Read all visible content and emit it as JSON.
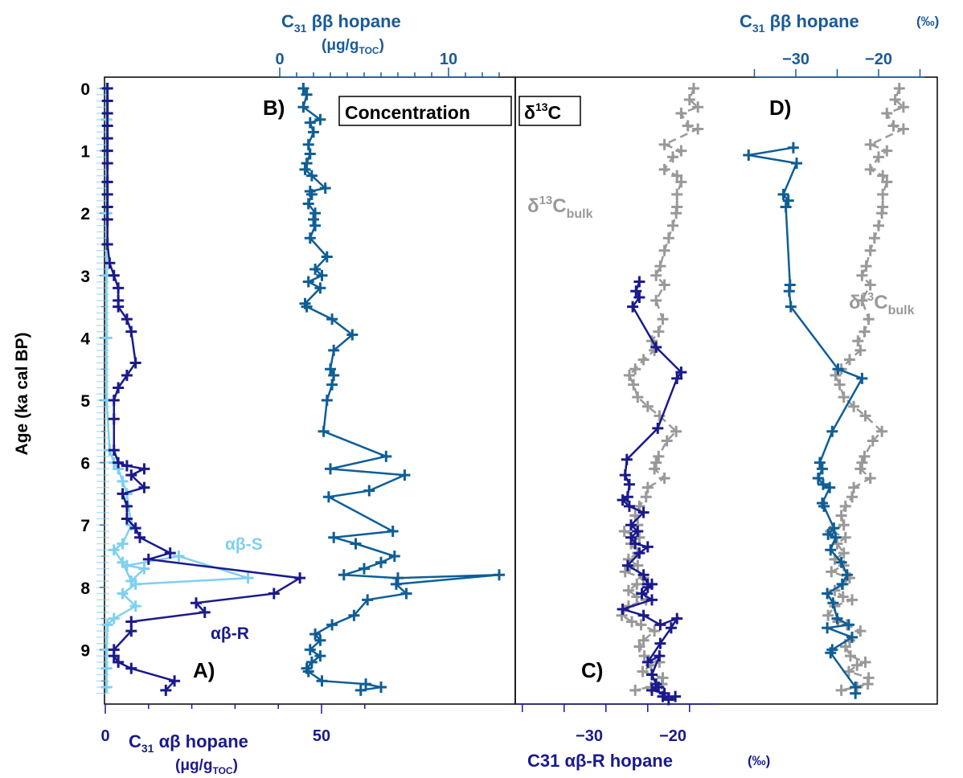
{
  "figure": {
    "y_axis_label": "Age (ka cal BP)",
    "y_ticks": [
      "0",
      "1",
      "2",
      "3",
      "4",
      "5",
      "6",
      "7",
      "8",
      "9"
    ],
    "panel_a_label": "A)",
    "panel_b_label": "B)",
    "panel_c_label": "C)",
    "panel_d_label": "D)",
    "box_concentration": "Concentration",
    "box_d13c_pre": "δ",
    "box_d13c_sup": "13",
    "box_d13c_post": "C",
    "axis_a_title_pre": "C",
    "axis_a_title_sub": "31",
    "axis_a_title_post": " αβ hopane",
    "axis_a_unit_pre": "(μg/g",
    "axis_a_unit_sub": "TOC",
    "axis_a_unit_post": ")",
    "axis_a_ticks": [
      "0",
      "50"
    ],
    "axis_b_title_pre": "C",
    "axis_b_title_sub": "31",
    "axis_b_title_post": " ββ hopane",
    "axis_b_unit_pre": "(μg/g",
    "axis_b_unit_sub": "TOC",
    "axis_b_unit_post": ")",
    "axis_b_ticks": [
      "0",
      "10"
    ],
    "axis_c_title": "C31 αβ-R  hopane",
    "axis_c_unit": "(‰)",
    "axis_c_ticks": [
      "−30",
      "−20"
    ],
    "axis_d_title_pre": "C",
    "axis_d_title_sub": "31",
    "axis_d_title_post": " ββ hopane",
    "axis_d_unit": "(‰)",
    "axis_d_ticks": [
      "−30",
      "−20"
    ],
    "label_ab_s": "αβ-S",
    "label_ab_r": "αβ-R",
    "label_bulk_pre": "δ",
    "label_bulk_sup": "13",
    "label_bulk_main": "C",
    "label_bulk_sub": "bulk"
  },
  "colors": {
    "navy": "#1a1a8c",
    "light_blue": "#7fd0f0",
    "steel_blue": "#0f5e96",
    "gray": "#999999",
    "axis": "#1a5a9a"
  },
  "chart_data": [
    {
      "type": "line",
      "panel": "A",
      "xlim": [
        0,
        60
      ],
      "ylim": [
        0,
        9.8
      ],
      "series": [
        {
          "name": "αβ-R",
          "x": [
            0.5,
            0.5,
            0.5,
            0.5,
            0.5,
            0.5,
            0.5,
            0.5,
            0.5,
            0.5,
            0.5,
            0.5,
            1,
            2,
            3,
            3,
            3,
            5,
            6,
            7,
            5,
            3,
            2,
            2,
            2,
            3,
            5,
            9,
            6,
            9,
            4,
            5,
            5,
            7,
            8,
            15,
            10,
            45,
            39,
            21,
            23,
            6,
            6,
            2,
            2,
            3,
            6,
            16,
            14
          ],
          "y": [
            0,
            0.2,
            0.4,
            0.6,
            0.8,
            1.0,
            1.2,
            1.5,
            1.7,
            1.9,
            2.1,
            2.5,
            2.8,
            3.0,
            3.2,
            3.4,
            3.5,
            3.7,
            3.9,
            4.4,
            4.6,
            4.8,
            5.0,
            5.3,
            5.8,
            6.0,
            6.05,
            6.1,
            6.2,
            6.4,
            6.5,
            6.7,
            6.9,
            7.05,
            7.2,
            7.45,
            7.55,
            7.85,
            8.1,
            8.25,
            8.4,
            8.55,
            8.7,
            9.0,
            9.1,
            9.2,
            9.3,
            9.5,
            9.65
          ]
        },
        {
          "name": "αβ-S",
          "x": [
            0.3,
            0.3,
            0.3,
            0.3,
            0.3,
            0.3,
            0.3,
            0.3,
            0.3,
            1,
            2,
            3,
            4,
            5,
            6,
            4,
            2,
            4,
            6,
            9,
            5,
            17,
            33,
            7,
            4,
            7,
            2,
            0.5,
            0.3,
            0.3,
            0.3
          ],
          "y": [
            0,
            0.5,
            1,
            1.5,
            2,
            2.5,
            3,
            4,
            5,
            5.8,
            6.0,
            6.1,
            6.3,
            6.5,
            7.0,
            7.3,
            7.4,
            7.6,
            7.9,
            7.7,
            7.65,
            7.5,
            7.85,
            7.95,
            8.1,
            8.3,
            8.5,
            8.6,
            9.0,
            9.3,
            9.6
          ]
        }
      ]
    },
    {
      "type": "line",
      "panel": "B",
      "xlim": [
        0,
        13
      ],
      "ylim": [
        0,
        9.8
      ],
      "series": [
        {
          "name": "",
          "x": [
            1.4,
            1.6,
            1.4,
            2.4,
            1.8,
            2.0,
            1.7,
            1.8,
            1.6,
            1.5,
            1.9,
            2.7,
            1.8,
            1.9,
            1.7,
            2.1,
            2.0,
            2.1,
            1.8,
            2.8,
            2.1,
            2.5,
            1.7,
            2.4,
            1.5,
            1.6,
            3.1,
            4.3,
            3.2,
            3.0,
            3.2,
            3.1,
            2.8,
            2.6,
            6.3,
            3.0,
            7.4,
            5.3,
            2.9,
            6.7,
            3.2,
            4.5,
            6.8,
            6.0,
            5.0,
            3.8,
            7.0,
            13.0,
            6.9,
            7.5,
            5.2,
            4.4,
            3.1,
            2.1,
            2.4,
            1.8,
            2.4,
            1.9,
            1.6,
            1.7,
            2.5,
            5.1,
            6.0,
            4.8
          ],
          "y": [
            0,
            0.1,
            0.3,
            0.5,
            0.55,
            0.7,
            0.9,
            1.05,
            1.2,
            1.3,
            1.4,
            1.6,
            1.65,
            1.7,
            1.85,
            2.0,
            2.1,
            2.2,
            2.4,
            2.7,
            2.9,
            3.0,
            3.1,
            3.2,
            3.45,
            3.5,
            3.7,
            3.95,
            4.2,
            4.5,
            4.6,
            4.75,
            5.0,
            5.5,
            5.9,
            6.1,
            6.2,
            6.45,
            6.55,
            7.1,
            7.2,
            7.3,
            7.5,
            7.6,
            7.7,
            7.8,
            7.85,
            7.8,
            7.95,
            8.1,
            8.2,
            8.45,
            8.6,
            8.75,
            8.85,
            9.0,
            9.1,
            9.2,
            9.3,
            9.35,
            9.5,
            9.55,
            9.6,
            9.65
          ]
        }
      ]
    },
    {
      "type": "line",
      "panel": "C",
      "xlim": [
        -38,
        -15
      ],
      "ylim": [
        0,
        9.8
      ],
      "series": [
        {
          "name": "C31 αβ-R",
          "x": [
            -24.0,
            -24.4,
            -24.0,
            -24.8,
            -22.0,
            -19.0,
            -19.5,
            -21.8,
            -25.5,
            -25.7,
            -25.2,
            -25.4,
            -26.0,
            -25.2,
            -23.5,
            -25.0,
            -24.2,
            -25.0,
            -24.5,
            -23.0,
            -24.0,
            -25.4,
            -23.5,
            -23.0,
            -22.5,
            -23.0,
            -23.7,
            -22.5,
            -26.0,
            -23.5,
            -21.5,
            -19.5,
            -20.2,
            -21.5,
            -23.0,
            -21.6,
            -22.5,
            -22.0,
            -21.7,
            -22.5,
            -21.0,
            -21.2,
            -20.5,
            -19.7
          ],
          "y": [
            3.1,
            3.25,
            3.35,
            3.5,
            4.15,
            4.55,
            4.65,
            5.45,
            5.95,
            6.2,
            6.35,
            6.55,
            6.6,
            6.7,
            6.8,
            7.0,
            7.1,
            7.2,
            7.3,
            7.35,
            7.45,
            7.65,
            7.8,
            7.95,
            7.95,
            8.0,
            8.1,
            8.2,
            8.35,
            8.45,
            8.6,
            8.5,
            8.65,
            8.9,
            9.2,
            9.1,
            9.4,
            9.55,
            9.6,
            9.65,
            9.7,
            9.75,
            9.8,
            9.75
          ]
        },
        {
          "name": "δ13C bulk",
          "x": [
            -17.5,
            -18.0,
            -17.0,
            -19.0,
            -18.2,
            -17.0,
            -21.0,
            -19.0,
            -20.0,
            -21.0,
            -19.5,
            -19.0,
            -19.5,
            -19.5,
            -19.6,
            -20.0,
            -20.5,
            -21.0,
            -21.5,
            -22.0,
            -21.0,
            -22.0,
            -21.2,
            -21.7,
            -22.5,
            -22.2,
            -23.5,
            -24.5,
            -25.2,
            -24.7,
            -24.2,
            -23.0,
            -21.6,
            -19.6,
            -20.7,
            -21.7,
            -22.0,
            -22.2,
            -21.0,
            -23.0,
            -23.2,
            -24.0,
            -24.5,
            -24.2,
            -25.8,
            -24.0,
            -25.0,
            -24.2,
            -25.3,
            -24.2,
            -25.7,
            -23.5,
            -24.3,
            -25.3,
            -24.3,
            -23.2,
            -25.3,
            -26.1,
            -24.9,
            -23.8,
            -22.2,
            -23.5,
            -24.0,
            -23.4,
            -21.6,
            -22.6,
            -23.6,
            -21.2,
            -21.3,
            -24.5,
            -22.6
          ],
          "y": [
            0,
            0.18,
            0.3,
            0.4,
            0.6,
            0.65,
            0.9,
            1.0,
            1.1,
            1.3,
            1.4,
            1.5,
            1.7,
            1.9,
            2.0,
            2.2,
            2.4,
            2.6,
            2.85,
            3.0,
            3.15,
            3.4,
            3.7,
            3.9,
            4.05,
            4.2,
            4.35,
            4.5,
            4.6,
            4.75,
            4.95,
            5.1,
            5.25,
            5.5,
            5.65,
            5.9,
            6.0,
            6.1,
            6.25,
            6.4,
            6.55,
            6.7,
            6.85,
            7.0,
            7.1,
            7.2,
            7.3,
            7.45,
            7.55,
            7.65,
            7.75,
            7.85,
            7.95,
            8.05,
            8.15,
            8.2,
            8.3,
            8.45,
            8.55,
            8.6,
            8.7,
            8.85,
            8.95,
            9.1,
            9.2,
            9.25,
            9.35,
            9.45,
            9.55,
            9.65,
            9.6
          ]
        }
      ]
    },
    {
      "type": "line",
      "panel": "D",
      "xlim": [
        -35.5,
        -15
      ],
      "ylim": [
        0,
        9.8
      ],
      "series": [
        {
          "name": "C31 ββ",
          "x": [
            -30.3,
            -35.7,
            -29.9,
            -31.5,
            -30.9,
            -31.2,
            -30.7,
            -30.8,
            -30.6,
            -24.9,
            -22.0,
            -25.6,
            -27.1,
            -26.8,
            -27.3,
            -26.7,
            -25.9,
            -26.8,
            -26.6,
            -25.4,
            -26.1,
            -25.2,
            -25.8,
            -24.5,
            -23.8,
            -24.4,
            -26.2,
            -25.5,
            -25.0,
            -23.6,
            -26.2,
            -23.2,
            -25.6,
            -25.8,
            -22.8,
            -22.8
          ],
          "y": [
            0.95,
            1.07,
            1.2,
            1.7,
            1.8,
            1.9,
            3.15,
            3.25,
            3.5,
            4.5,
            4.65,
            5.5,
            6.0,
            6.1,
            6.25,
            6.35,
            6.4,
            6.65,
            6.7,
            7.05,
            7.15,
            7.2,
            7.4,
            7.6,
            7.8,
            7.95,
            8.1,
            8.25,
            8.5,
            8.6,
            8.65,
            8.8,
            9.0,
            9.05,
            9.6,
            9.7
          ]
        },
        {
          "name": "δ13C bulk",
          "x": [
            -17.5,
            -18.0,
            -17.0,
            -19.0,
            -18.2,
            -17.0,
            -21.0,
            -19.0,
            -20.0,
            -21.0,
            -19.5,
            -19.0,
            -19.5,
            -19.5,
            -19.6,
            -20.0,
            -20.5,
            -21.0,
            -21.5,
            -22.0,
            -21.0,
            -22.0,
            -21.2,
            -21.7,
            -22.5,
            -22.2,
            -23.5,
            -24.5,
            -25.2,
            -24.7,
            -24.2,
            -23.0,
            -21.6,
            -19.6,
            -20.7,
            -21.7,
            -22.0,
            -22.2,
            -21.0,
            -23.0,
            -23.2,
            -24.0,
            -24.5,
            -24.2,
            -25.8,
            -24.0,
            -25.0,
            -24.2,
            -25.3,
            -24.2,
            -25.7,
            -23.5,
            -24.3,
            -25.3,
            -24.3,
            -23.2,
            -25.3,
            -26.1,
            -24.9,
            -23.8,
            -22.2,
            -23.5,
            -24.0,
            -23.4,
            -21.6,
            -22.6,
            -23.6,
            -21.2,
            -21.3,
            -24.5,
            -22.6
          ],
          "y": [
            0,
            0.18,
            0.3,
            0.4,
            0.6,
            0.65,
            0.9,
            1.0,
            1.1,
            1.3,
            1.4,
            1.5,
            1.7,
            1.9,
            2.0,
            2.2,
            2.4,
            2.6,
            2.85,
            3.0,
            3.15,
            3.4,
            3.7,
            3.9,
            4.05,
            4.2,
            4.35,
            4.5,
            4.6,
            4.75,
            4.95,
            5.1,
            5.25,
            5.5,
            5.65,
            5.9,
            6.0,
            6.1,
            6.25,
            6.4,
            6.55,
            6.7,
            6.85,
            7.0,
            7.1,
            7.2,
            7.3,
            7.45,
            7.55,
            7.65,
            7.75,
            7.85,
            7.95,
            8.05,
            8.15,
            8.2,
            8.3,
            8.45,
            8.55,
            8.6,
            8.7,
            8.85,
            8.95,
            9.1,
            9.2,
            9.25,
            9.35,
            9.45,
            9.55,
            9.65,
            9.6
          ]
        }
      ]
    }
  ]
}
